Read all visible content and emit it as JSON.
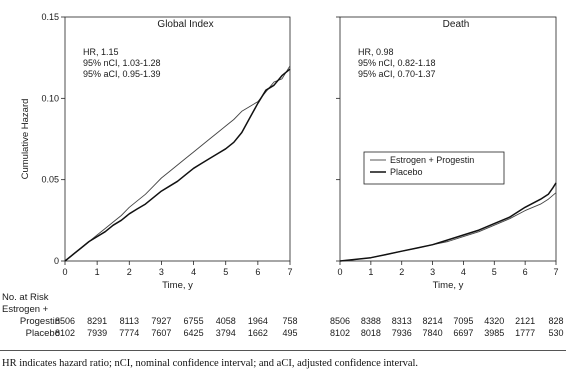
{
  "chart_data": [
    {
      "type": "line",
      "title": "Global Index",
      "xlabel": "Time, y",
      "ylabel": "Cumulative Hazard",
      "xlim": [
        0,
        7
      ],
      "ylim": [
        0,
        0.15
      ],
      "xticks": [
        "0",
        "1",
        "2",
        "3",
        "4",
        "5",
        "6",
        "7"
      ],
      "yticks": [
        "0",
        "0.05",
        "0.10",
        "0.15"
      ],
      "annotations": [
        "HR, 1.15",
        "95% nCI, 1.03-1.28",
        "95% aCI, 0.95-1.39"
      ],
      "series": [
        {
          "name": "Estrogen + Progestin",
          "x": [
            0,
            0.25,
            0.5,
            0.75,
            1,
            1.25,
            1.5,
            1.75,
            2,
            2.25,
            2.5,
            2.75,
            3,
            3.25,
            3.5,
            3.75,
            4,
            4.25,
            4.5,
            4.75,
            5,
            5.25,
            5.5,
            5.75,
            6,
            6.25,
            6.5,
            6.75,
            7
          ],
          "y": [
            0,
            0.004,
            0.008,
            0.012,
            0.016,
            0.02,
            0.024,
            0.028,
            0.033,
            0.037,
            0.041,
            0.046,
            0.051,
            0.055,
            0.059,
            0.063,
            0.067,
            0.071,
            0.075,
            0.079,
            0.083,
            0.087,
            0.092,
            0.095,
            0.098,
            0.104,
            0.11,
            0.112,
            0.12
          ]
        },
        {
          "name": "Placebo",
          "x": [
            0,
            0.25,
            0.5,
            0.75,
            1,
            1.25,
            1.5,
            1.75,
            2,
            2.25,
            2.5,
            2.75,
            3,
            3.25,
            3.5,
            3.75,
            4,
            4.25,
            4.5,
            4.75,
            5,
            5.25,
            5.5,
            5.75,
            6,
            6.25,
            6.5,
            6.75,
            7
          ],
          "y": [
            0,
            0.004,
            0.008,
            0.012,
            0.015,
            0.018,
            0.022,
            0.025,
            0.029,
            0.032,
            0.035,
            0.039,
            0.043,
            0.046,
            0.049,
            0.053,
            0.057,
            0.06,
            0.063,
            0.066,
            0.069,
            0.073,
            0.079,
            0.088,
            0.097,
            0.105,
            0.108,
            0.114,
            0.118
          ]
        }
      ],
      "at_risk": {
        "Estrogen + Progestin": [
          "8506",
          "8291",
          "8113",
          "7927",
          "6755",
          "4058",
          "1964",
          "758"
        ],
        "Placebo": [
          "8102",
          "7939",
          "7774",
          "7607",
          "6425",
          "3794",
          "1662",
          "495"
        ]
      }
    },
    {
      "type": "line",
      "title": "Death",
      "xlabel": "Time, y",
      "xlim": [
        0,
        7
      ],
      "ylim": [
        0,
        0.15
      ],
      "xticks": [
        "0",
        "1",
        "2",
        "3",
        "4",
        "5",
        "6",
        "7"
      ],
      "annotations": [
        "HR, 0.98",
        "95% nCI, 0.82-1.18",
        "95% aCI, 0.70-1.37"
      ],
      "legend": {
        "position": "middle-right",
        "entries": [
          "Estrogen + Progestin",
          "Placebo"
        ]
      },
      "series": [
        {
          "name": "Estrogen + Progestin",
          "x": [
            0,
            0.5,
            1,
            1.5,
            2,
            2.5,
            3,
            3.5,
            4,
            4.5,
            5,
            5.5,
            6,
            6.5,
            6.75,
            7
          ],
          "y": [
            0,
            0.001,
            0.002,
            0.004,
            0.006,
            0.008,
            0.01,
            0.012,
            0.015,
            0.018,
            0.022,
            0.026,
            0.031,
            0.035,
            0.038,
            0.042
          ]
        },
        {
          "name": "Placebo",
          "x": [
            0,
            0.5,
            1,
            1.5,
            2,
            2.5,
            3,
            3.5,
            4,
            4.5,
            5,
            5.5,
            6,
            6.5,
            6.75,
            6.9,
            7
          ],
          "y": [
            0,
            0.001,
            0.002,
            0.004,
            0.006,
            0.008,
            0.01,
            0.013,
            0.016,
            0.019,
            0.023,
            0.027,
            0.033,
            0.038,
            0.041,
            0.045,
            0.048
          ]
        }
      ],
      "at_risk": {
        "Estrogen + Progestin": [
          "8506",
          "8388",
          "8313",
          "8214",
          "7095",
          "4320",
          "2121",
          "828"
        ],
        "Placebo": [
          "8102",
          "8018",
          "7936",
          "7840",
          "6697",
          "3985",
          "1777",
          "530"
        ]
      }
    }
  ],
  "at_risk_header": "No. at Risk",
  "at_risk_label_line1": "Estrogen +",
  "at_risk_label_line2": "Progestin",
  "at_risk_label_placebo": "Placebo",
  "caption": "HR indicates hazard ratio; nCI, nominal confidence interval; and aCI, adjusted confidence interval."
}
